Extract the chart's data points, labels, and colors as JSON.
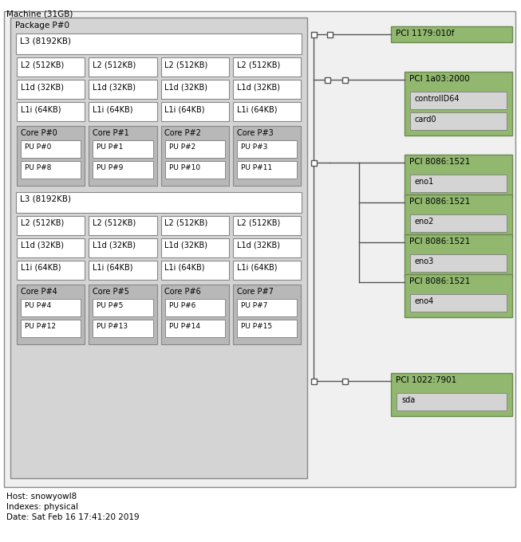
{
  "title": "Machine (31GB)",
  "fig_width": 6.53,
  "fig_height": 6.8,
  "footer_lines": [
    "Host: snowyowl8",
    "Indexes: physical",
    "Date: Sat Feb 16 17:41:20 2019"
  ],
  "package_label": "Package P#0",
  "machine_bg": "#f0f0f0",
  "machine_border": "#888888",
  "package_bg": "#d4d4d4",
  "package_border": "#888888",
  "l3_bg": "#ffffff",
  "l3_border": "#888888",
  "cache_bg": "#ffffff",
  "cache_border": "#888888",
  "core_bg": "#b8b8b8",
  "core_border": "#888888",
  "pu_bg": "#ffffff",
  "pu_border": "#888888",
  "pci_green": "#91b86e",
  "pci_border": "#6a8a50",
  "child_bg": "#d4d4d4",
  "child_border": "#888888",
  "line_color": "#555555",
  "text_color": "#000000",
  "bg_color": "#ffffff",
  "cores_top": [
    {
      "label": "Core P#0",
      "pus": [
        "PU P#0",
        "PU P#8"
      ]
    },
    {
      "label": "Core P#1",
      "pus": [
        "PU P#1",
        "PU P#9"
      ]
    },
    {
      "label": "Core P#2",
      "pus": [
        "PU P#2",
        "PU P#10"
      ]
    },
    {
      "label": "Core P#3",
      "pus": [
        "PU P#3",
        "PU P#11"
      ]
    }
  ],
  "cores_bot": [
    {
      "label": "Core P#4",
      "pus": [
        "PU P#4",
        "PU P#12"
      ]
    },
    {
      "label": "Core P#5",
      "pus": [
        "PU P#5",
        "PU P#13"
      ]
    },
    {
      "label": "Core P#6",
      "pus": [
        "PU P#6",
        "PU P#14"
      ]
    },
    {
      "label": "Core P#7",
      "pus": [
        "PU P#7",
        "PU P#15"
      ]
    }
  ],
  "cache_rows": [
    [
      "L2 (512KB)",
      "L2 (512KB)",
      "L2 (512KB)",
      "L2 (512KB)"
    ],
    [
      "L1d (32KB)",
      "L1d (32KB)",
      "L1d (32KB)",
      "L1d (32KB)"
    ],
    [
      "L1i (64KB)",
      "L1i (64KB)",
      "L1i (64KB)",
      "L1i (64KB)"
    ]
  ],
  "pci_items": [
    {
      "label": "PCI 1179:010f",
      "children": [],
      "indent": false
    },
    {
      "label": "PCI 1a03:2000",
      "children": [
        "controlID64",
        "card0"
      ],
      "indent": true
    },
    {
      "label": "PCI 8086:1521",
      "children": [
        "eno1"
      ],
      "indent": true
    },
    {
      "label": "PCI 8086:1521",
      "children": [
        "eno2"
      ],
      "indent": true
    },
    {
      "label": "PCI 8086:1521",
      "children": [
        "eno3"
      ],
      "indent": true
    },
    {
      "label": "PCI 8086:1521",
      "children": [
        "eno4"
      ],
      "indent": true
    },
    {
      "label": "PCI 1022:7901",
      "children": [
        "sda"
      ],
      "indent": false
    }
  ]
}
